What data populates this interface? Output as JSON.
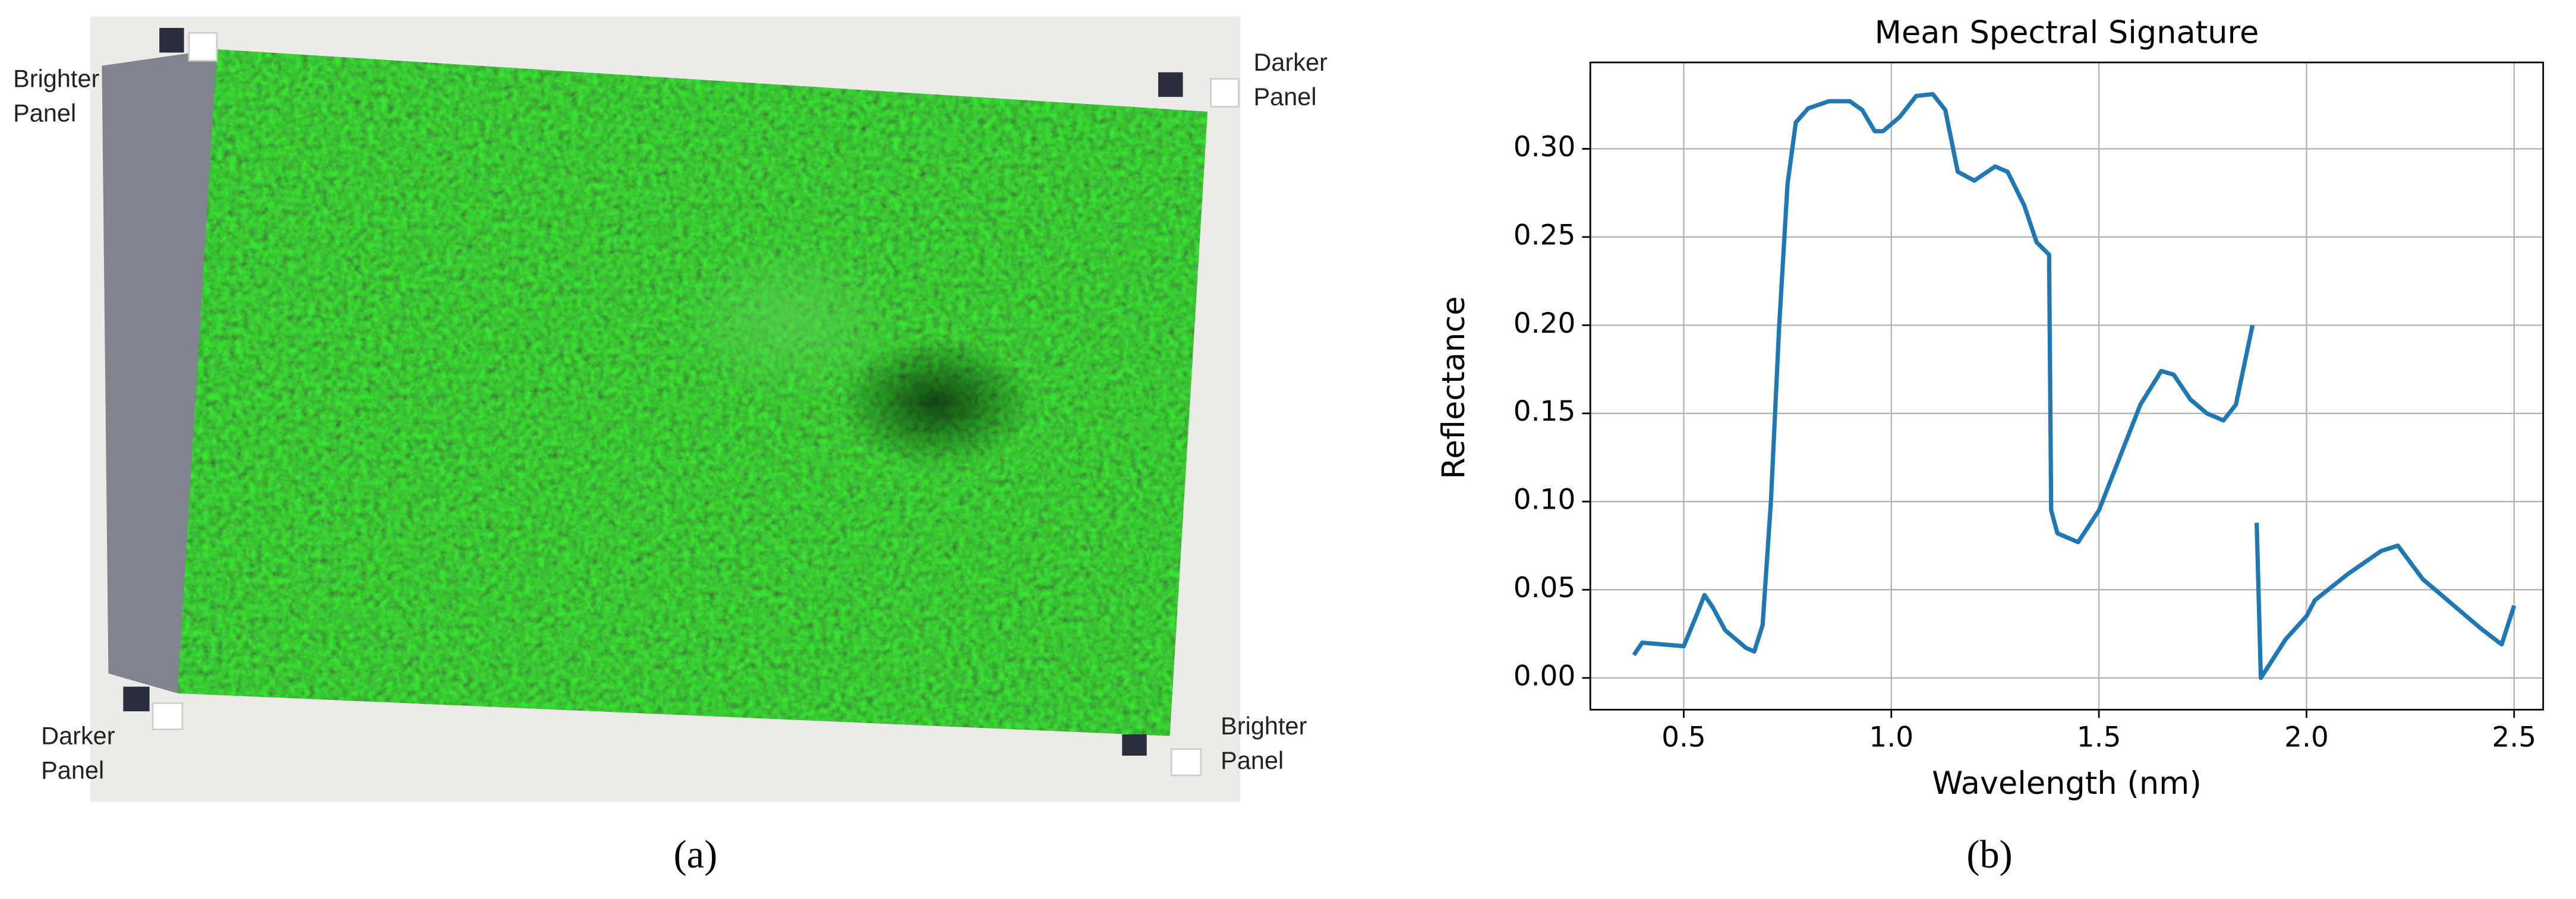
{
  "photo": {
    "labels": [
      "Brighter Panel",
      "Darker Panel",
      "Darker Panel",
      "Brighter Panel"
    ]
  },
  "captions": [
    "(a)",
    "(b)"
  ],
  "chart_data": {
    "type": "line",
    "title": "Mean Spectral Signature",
    "x_label": "Wavelength (nm)",
    "y_label": "Reflectance",
    "color": "#1f77b4",
    "grid": true,
    "xlim": [
      0.275,
      2.57
    ],
    "ylim": [
      -0.018,
      0.349
    ],
    "xticks": [
      0.5,
      {
        "value": 1,
        "label": "1.0"
      },
      1.5,
      {
        "value": 2,
        "label": "2.0"
      },
      2.5
    ],
    "yticks": [
      {
        "value": 0,
        "label": "0.00"
      },
      {
        "value": 0.05,
        "label": "0.05"
      },
      {
        "value": 0.1,
        "label": "0.10"
      },
      {
        "value": 0.15,
        "label": "0.15"
      },
      {
        "value": 0.2,
        "label": "0.20"
      },
      {
        "value": 0.25,
        "label": "0.25"
      },
      {
        "value": 0.3,
        "label": "0.30"
      }
    ],
    "x": [
      0.38,
      0.4,
      0.45,
      0.5,
      0.53,
      0.55,
      0.57,
      0.6,
      0.65,
      0.67,
      0.69,
      0.71,
      0.73,
      0.75,
      0.77,
      0.8,
      0.85,
      0.9,
      0.93,
      0.96,
      0.98,
      1.02,
      1.06,
      1.1,
      1.13,
      1.16,
      1.2,
      1.25,
      1.28,
      1.32,
      1.35,
      1.38,
      1.385,
      1.4,
      1.45,
      1.5,
      1.55,
      1.6,
      1.65,
      1.68,
      1.72,
      1.76,
      1.8,
      1.83,
      1.87,
      1.875,
      1.88,
      1.89,
      1.95,
      2.0,
      2.02,
      2.1,
      2.18,
      2.22,
      2.28,
      2.35,
      2.42,
      2.47,
      2.5
    ],
    "values": [
      0.013,
      0.02,
      0.019,
      0.018,
      0.035,
      0.047,
      0.04,
      0.027,
      0.017,
      0.015,
      0.03,
      0.1,
      0.2,
      0.28,
      0.315,
      0.323,
      0.327,
      0.327,
      0.322,
      0.31,
      0.31,
      0.318,
      0.33,
      0.331,
      0.322,
      0.287,
      0.282,
      0.29,
      0.287,
      0.268,
      0.247,
      0.24,
      0.095,
      0.082,
      0.077,
      0.095,
      0.125,
      0.155,
      0.174,
      0.172,
      0.158,
      0.15,
      0.146,
      0.155,
      0.2,
      null,
      0.088,
      0.0,
      0.022,
      0.035,
      0.044,
      0.059,
      0.072,
      0.075,
      0.056,
      0.042,
      0.028,
      0.019,
      0.041
    ]
  }
}
